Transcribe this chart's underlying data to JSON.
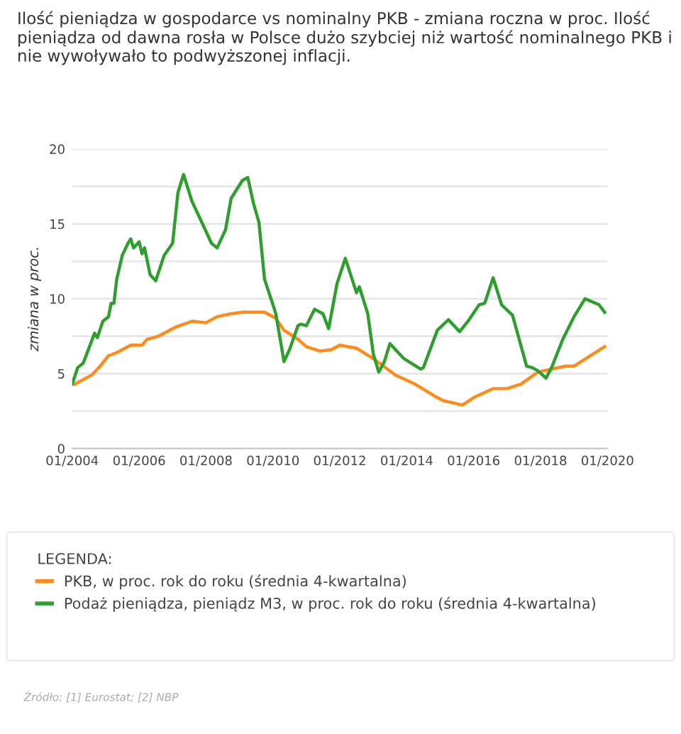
{
  "chart_data": {
    "type": "line",
    "title": "Ilość pieniądza w gospodarce vs nominalny PKB - zmiana roczna w proc. Ilość pieniądza od dawna rosła w Polsce dużo szybciej niż wartość nominalnego PKB i nie wywoływało to podwyższonej inflacji.",
    "ylabel": "zmiana w proc.",
    "legend_title": "LEGENDA:",
    "annotations": [
      "Źródło: [1] Eurostat; [2] NBP"
    ],
    "series": [
      {
        "name": "PKB, w proc. rok do roku (średnia 4-kwartalna)",
        "color": "#ff8c1a",
        "x": [
          "2004-02",
          "2004-08",
          "2004-11",
          "2005-02",
          "2005-05",
          "2005-10",
          "2006-02",
          "2006-04",
          "2006-08",
          "2007-02",
          "2007-08",
          "2008-01",
          "2008-05",
          "2008-10",
          "2009-02",
          "2009-10",
          "2010-02",
          "2010-05",
          "2010-10",
          "2011-01",
          "2011-06",
          "2011-10",
          "2012-01",
          "2012-07",
          "2013-01",
          "2013-09",
          "2014-04",
          "2014-11",
          "2015-02",
          "2015-09",
          "2016-01",
          "2016-08",
          "2017-01",
          "2017-06",
          "2017-12",
          "2018-10",
          "2019-01",
          "2019-12"
        ],
        "values": [
          4.3,
          4.9,
          5.5,
          6.2,
          6.4,
          6.9,
          6.9,
          7.3,
          7.5,
          8.1,
          8.5,
          8.4,
          8.8,
          9.0,
          9.1,
          9.1,
          8.7,
          7.9,
          7.3,
          6.8,
          6.5,
          6.6,
          6.9,
          6.7,
          6.0,
          4.9,
          4.3,
          3.5,
          3.2,
          2.9,
          3.4,
          4.0,
          4.0,
          4.3,
          5.1,
          5.5,
          5.5,
          6.8
        ]
      },
      {
        "name": "Podaż pieniądza, pieniądz M3, w proc. rok do roku (średnia 4-kwartalna)",
        "color": "#2e9e2e",
        "x": [
          "2004-01",
          "2004-03",
          "2004-05",
          "2004-09",
          "2004-10",
          "2004-12",
          "2005-02",
          "2005-03",
          "2005-04",
          "2005-05",
          "2005-07",
          "2005-09",
          "2005-10",
          "2005-11",
          "2006-01",
          "2006-02",
          "2006-03",
          "2006-05",
          "2006-07",
          "2006-10",
          "2007-01",
          "2007-03",
          "2007-05",
          "2007-08",
          "2007-11",
          "2008-03",
          "2008-05",
          "2008-08",
          "2008-10",
          "2009-02",
          "2009-04",
          "2009-06",
          "2009-08",
          "2009-10",
          "2010-01",
          "2010-02",
          "2010-04",
          "2010-05",
          "2010-07",
          "2010-10",
          "2010-11",
          "2011-01",
          "2011-04",
          "2011-07",
          "2011-09",
          "2011-12",
          "2012-03",
          "2012-07",
          "2012-08",
          "2012-11",
          "2013-01",
          "2013-03",
          "2013-05",
          "2013-07",
          "2013-12",
          "2014-06",
          "2014-07",
          "2014-12",
          "2015-04",
          "2015-08",
          "2015-11",
          "2016-03",
          "2016-05",
          "2016-08",
          "2016-11",
          "2017-03",
          "2017-08",
          "2017-10",
          "2017-12",
          "2018-03",
          "2018-05",
          "2018-09",
          "2019-01",
          "2019-05",
          "2019-10",
          "2019-12"
        ],
        "values": [
          4.3,
          5.4,
          5.7,
          7.7,
          7.4,
          8.5,
          8.8,
          9.7,
          9.7,
          11.3,
          12.9,
          13.7,
          14.0,
          13.4,
          13.8,
          13.0,
          13.4,
          11.6,
          11.2,
          12.9,
          13.7,
          17.1,
          18.3,
          16.5,
          15.3,
          13.7,
          13.4,
          14.6,
          16.7,
          17.9,
          18.1,
          16.4,
          15.1,
          11.3,
          9.6,
          9.0,
          6.9,
          5.8,
          6.6,
          8.2,
          8.3,
          8.2,
          9.3,
          9.0,
          8.0,
          11.0,
          12.7,
          10.4,
          10.8,
          9.0,
          6.3,
          5.1,
          5.8,
          7.0,
          6.0,
          5.3,
          5.4,
          7.9,
          8.6,
          7.8,
          8.5,
          9.6,
          9.7,
          11.4,
          9.6,
          8.9,
          5.5,
          5.4,
          5.2,
          4.7,
          5.4,
          7.3,
          8.8,
          10.0,
          9.6,
          9.1
        ]
      }
    ],
    "xlim": [
      "2004-01",
      "2020-01"
    ],
    "xticks": [
      {
        "value": "2004-01",
        "label": "01/2004"
      },
      {
        "value": "2006-01",
        "label": "01/2006"
      },
      {
        "value": "2008-01",
        "label": "01/2008"
      },
      {
        "value": "2010-01",
        "label": "01/2010"
      },
      {
        "value": "2012-01",
        "label": "01/2012"
      },
      {
        "value": "2014-01",
        "label": "01/2014"
      },
      {
        "value": "2016-01",
        "label": "01/2016"
      },
      {
        "value": "2018-01",
        "label": "01/2018"
      },
      {
        "value": "2020-01",
        "label": "01/2020"
      }
    ],
    "ylim": [
      0,
      20
    ],
    "yticks": [
      0,
      {
        "value": 2.5,
        "label": null
      },
      5,
      {
        "value": 7.5,
        "label": null
      },
      10,
      {
        "value": 12.5,
        "label": null
      },
      15,
      {
        "value": 17.5,
        "label": null
      },
      20
    ],
    "grid": "y",
    "legend": "bottom",
    "marker": "none",
    "line_style": "solid"
  }
}
